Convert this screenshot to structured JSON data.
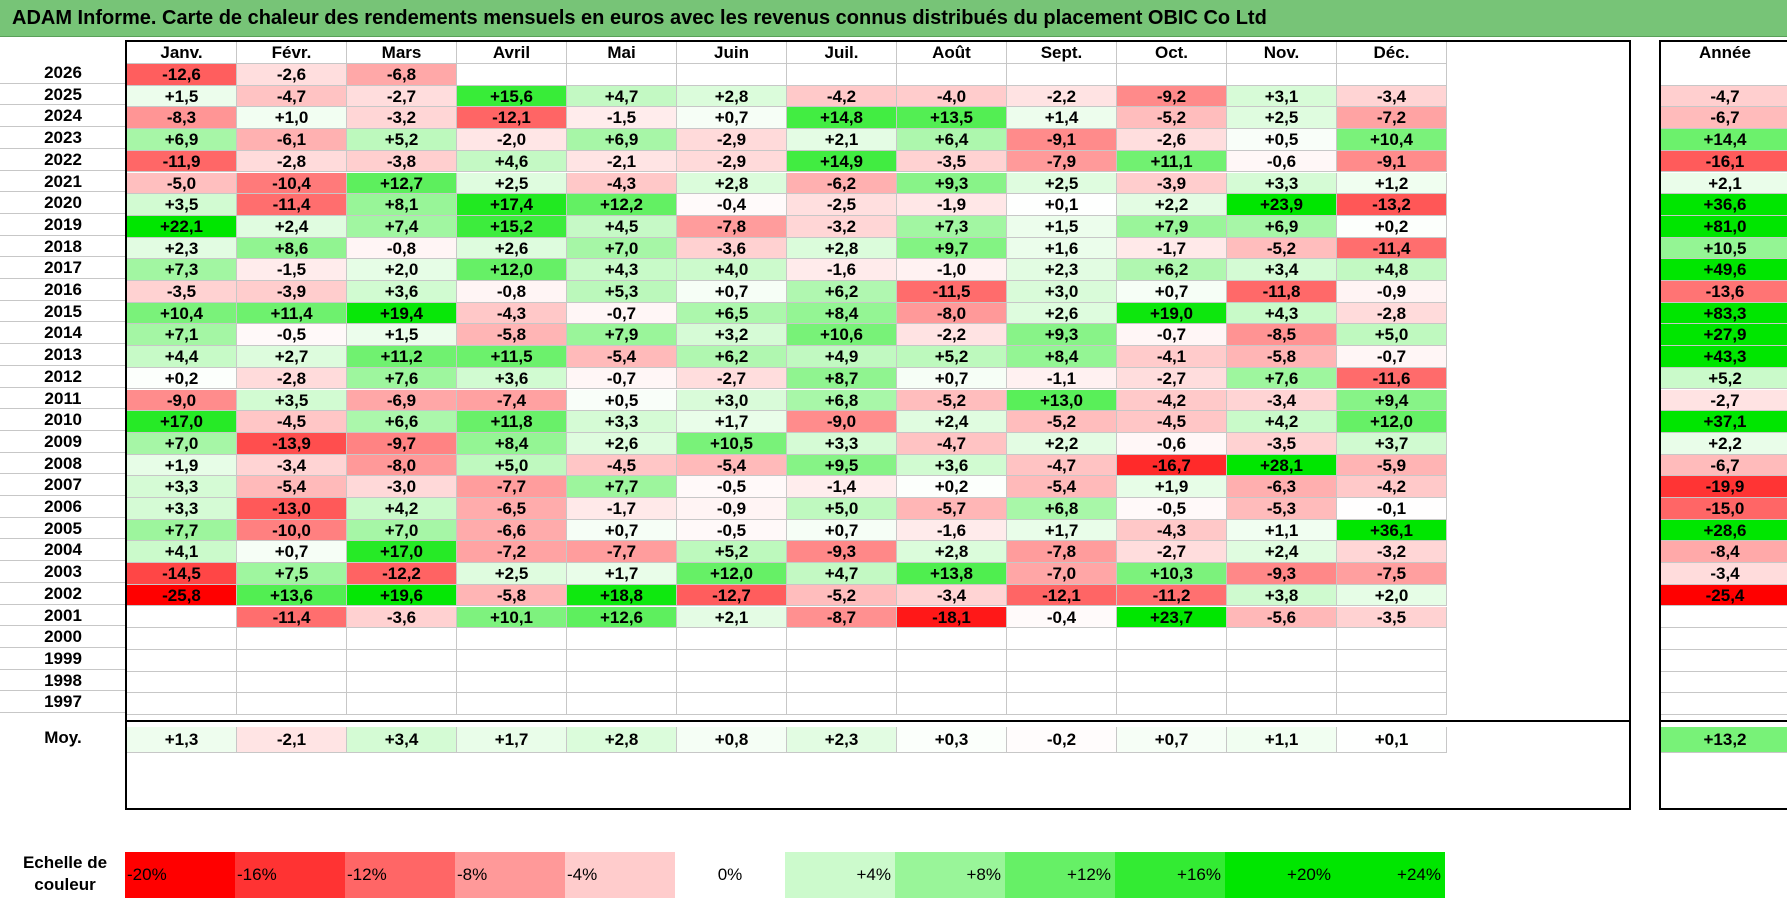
{
  "title": "ADAM Informe. Carte de chaleur des rendements mensuels en euros avec les revenus connus distribués du placement OBIC Co Ltd",
  "months": [
    "Janv.",
    "Févr.",
    "Mars",
    "Avril",
    "Mai",
    "Juin",
    "Juil.",
    "Août",
    "Sept.",
    "Oct.",
    "Nov.",
    "Déc."
  ],
  "annual_header": "Année",
  "average_label": "Moy.",
  "legend_label_line1": "Echelle de",
  "legend_label_line2": "couleur",
  "colors": {
    "neg_max": "#ff0000",
    "pos_max": "#00e600",
    "neutral": "#ffffff",
    "title_bg": "#77c477"
  },
  "chart_data": {
    "type": "heatmap",
    "title": "ADAM Informe. Carte de chaleur des rendements mensuels en euros avec les revenus connus distribués du placement OBIC Co Ltd",
    "color_scale": [
      "-20%",
      "-16%",
      "-12%",
      "-8%",
      "-4%",
      "0%",
      "+4%",
      "+8%",
      "+12%",
      "+16%",
      "+20%",
      "+24%"
    ],
    "rows": [
      {
        "year": "2026",
        "months": [
          "-12,6",
          "-2,6",
          "-6,8",
          "",
          "",
          "",
          "",
          "",
          "",
          "",
          "",
          ""
        ],
        "annual": ""
      },
      {
        "year": "2025",
        "months": [
          "+1,5",
          "-4,7",
          "-2,7",
          "+15,6",
          "+4,7",
          "+2,8",
          "-4,2",
          "-4,0",
          "-2,2",
          "-9,2",
          "+3,1",
          "-3,4"
        ],
        "annual": "-4,7"
      },
      {
        "year": "2024",
        "months": [
          "-8,3",
          "+1,0",
          "-3,2",
          "-12,1",
          "-1,5",
          "+0,7",
          "+14,8",
          "+13,5",
          "+1,4",
          "-5,2",
          "+2,5",
          "-7,2"
        ],
        "annual": "-6,7"
      },
      {
        "year": "2023",
        "months": [
          "+6,9",
          "-6,1",
          "+5,2",
          "-2,0",
          "+6,9",
          "-2,9",
          "+2,1",
          "+6,4",
          "-9,1",
          "-2,6",
          "+0,5",
          "+10,4"
        ],
        "annual": "+14,4"
      },
      {
        "year": "2022",
        "months": [
          "-11,9",
          "-2,8",
          "-3,8",
          "+4,6",
          "-2,1",
          "-2,9",
          "+14,9",
          "-3,5",
          "-7,9",
          "+11,1",
          "-0,6",
          "-9,1"
        ],
        "annual": "-16,1"
      },
      {
        "year": "2021",
        "months": [
          "-5,0",
          "-10,4",
          "+12,7",
          "+2,5",
          "-4,3",
          "+2,8",
          "-6,2",
          "+9,3",
          "+2,5",
          "-3,9",
          "+3,3",
          "+1,2"
        ],
        "annual": "+2,1"
      },
      {
        "year": "2020",
        "months": [
          "+3,5",
          "-11,4",
          "+8,1",
          "+17,4",
          "+12,2",
          "-0,4",
          "-2,5",
          "-1,9",
          "+0,1",
          "+2,2",
          "+23,9",
          "-13,2"
        ],
        "annual": "+36,6"
      },
      {
        "year": "2019",
        "months": [
          "+22,1",
          "+2,4",
          "+7,4",
          "+15,2",
          "+4,5",
          "-7,8",
          "-3,2",
          "+7,3",
          "+1,5",
          "+7,9",
          "+6,9",
          "+0,2"
        ],
        "annual": "+81,0"
      },
      {
        "year": "2018",
        "months": [
          "+2,3",
          "+8,6",
          "-0,8",
          "+2,6",
          "+7,0",
          "-3,6",
          "+2,8",
          "+9,7",
          "+1,6",
          "-1,7",
          "-5,2",
          "-11,4"
        ],
        "annual": "+10,5"
      },
      {
        "year": "2017",
        "months": [
          "+7,3",
          "-1,5",
          "+2,0",
          "+12,0",
          "+4,3",
          "+4,0",
          "-1,6",
          "-1,0",
          "+2,3",
          "+6,2",
          "+3,4",
          "+4,8"
        ],
        "annual": "+49,6"
      },
      {
        "year": "2016",
        "months": [
          "-3,5",
          "-3,9",
          "+3,6",
          "-0,8",
          "+5,3",
          "+0,7",
          "+6,2",
          "-11,5",
          "+3,0",
          "+0,7",
          "-11,8",
          "-0,9"
        ],
        "annual": "-13,6"
      },
      {
        "year": "2015",
        "months": [
          "+10,4",
          "+11,4",
          "+19,4",
          "-4,3",
          "-0,7",
          "+6,5",
          "+8,4",
          "-8,0",
          "+2,6",
          "+19,0",
          "+4,3",
          "-2,8"
        ],
        "annual": "+83,3"
      },
      {
        "year": "2014",
        "months": [
          "+7,1",
          "-0,5",
          "+1,5",
          "-5,8",
          "+7,9",
          "+3,2",
          "+10,6",
          "-2,2",
          "+9,3",
          "-0,7",
          "-8,5",
          "+5,0"
        ],
        "annual": "+27,9"
      },
      {
        "year": "2013",
        "months": [
          "+4,4",
          "+2,7",
          "+11,2",
          "+11,5",
          "-5,4",
          "+6,2",
          "+4,9",
          "+5,2",
          "+8,4",
          "-4,1",
          "-5,8",
          "-0,7"
        ],
        "annual": "+43,3"
      },
      {
        "year": "2012",
        "months": [
          "+0,2",
          "-2,8",
          "+7,6",
          "+3,6",
          "-0,7",
          "-2,7",
          "+8,7",
          "+0,7",
          "-1,1",
          "-2,7",
          "+7,6",
          "-11,6"
        ],
        "annual": "+5,2"
      },
      {
        "year": "2011",
        "months": [
          "-9,0",
          "+3,5",
          "-6,9",
          "-7,4",
          "+0,5",
          "+3,0",
          "+6,8",
          "-5,2",
          "+13,0",
          "-4,2",
          "-3,4",
          "+9,4"
        ],
        "annual": "-2,7"
      },
      {
        "year": "2010",
        "months": [
          "+17,0",
          "-4,5",
          "+6,6",
          "+11,8",
          "+3,3",
          "+1,7",
          "-9,0",
          "+2,4",
          "-5,2",
          "-4,5",
          "+4,2",
          "+12,0"
        ],
        "annual": "+37,1"
      },
      {
        "year": "2009",
        "months": [
          "+7,0",
          "-13,9",
          "-9,7",
          "+8,4",
          "+2,6",
          "+10,5",
          "+3,3",
          "-4,7",
          "+2,2",
          "-0,6",
          "-3,5",
          "+3,7"
        ],
        "annual": "+2,2"
      },
      {
        "year": "2008",
        "months": [
          "+1,9",
          "-3,4",
          "-8,0",
          "+5,0",
          "-4,5",
          "-5,4",
          "+9,5",
          "+3,6",
          "-4,7",
          "-16,7",
          "+28,1",
          "-5,9"
        ],
        "annual": "-6,7"
      },
      {
        "year": "2007",
        "months": [
          "+3,3",
          "-5,4",
          "-3,0",
          "-7,7",
          "+7,7",
          "-0,5",
          "-1,4",
          "+0,2",
          "-5,4",
          "+1,9",
          "-6,3",
          "-4,2"
        ],
        "annual": "-19,9"
      },
      {
        "year": "2006",
        "months": [
          "+3,3",
          "-13,0",
          "+4,2",
          "-6,5",
          "-1,7",
          "-0,9",
          "+5,0",
          "-5,7",
          "+6,8",
          "-0,5",
          "-5,3",
          "-0,1"
        ],
        "annual": "-15,0"
      },
      {
        "year": "2005",
        "months": [
          "+7,7",
          "-10,0",
          "+7,0",
          "-6,6",
          "+0,7",
          "-0,5",
          "+0,7",
          "-1,6",
          "+1,7",
          "-4,3",
          "+1,1",
          "+36,1"
        ],
        "annual": "+28,6"
      },
      {
        "year": "2004",
        "months": [
          "+4,1",
          "+0,7",
          "+17,0",
          "-7,2",
          "-7,7",
          "+5,2",
          "-9,3",
          "+2,8",
          "-7,8",
          "-2,7",
          "+2,4",
          "-3,2"
        ],
        "annual": "-8,4"
      },
      {
        "year": "2003",
        "months": [
          "-14,5",
          "+7,5",
          "-12,2",
          "+2,5",
          "+1,7",
          "+12,0",
          "+4,7",
          "+13,8",
          "-7,0",
          "+10,3",
          "-9,3",
          "-7,5"
        ],
        "annual": "-3,4"
      },
      {
        "year": "2002",
        "months": [
          "-25,8",
          "+13,6",
          "+19,6",
          "-5,8",
          "+18,8",
          "-12,7",
          "-5,2",
          "-3,4",
          "-12,1",
          "-11,2",
          "+3,8",
          "+2,0"
        ],
        "annual": "-25,4"
      },
      {
        "year": "2001",
        "months": [
          "",
          "-11,4",
          "-3,6",
          "+10,1",
          "+12,6",
          "+2,1",
          "-8,7",
          "-18,1",
          "-0,4",
          "+23,7",
          "-5,6",
          "-3,5"
        ],
        "annual": ""
      },
      {
        "year": "2000",
        "months": [
          "",
          "",
          "",
          "",
          "",
          "",
          "",
          "",
          "",
          "",
          "",
          ""
        ],
        "annual": ""
      },
      {
        "year": "1999",
        "months": [
          "",
          "",
          "",
          "",
          "",
          "",
          "",
          "",
          "",
          "",
          "",
          ""
        ],
        "annual": ""
      },
      {
        "year": "1998",
        "months": [
          "",
          "",
          "",
          "",
          "",
          "",
          "",
          "",
          "",
          "",
          "",
          ""
        ],
        "annual": ""
      },
      {
        "year": "1997",
        "months": [
          "",
          "",
          "",
          "",
          "",
          "",
          "",
          "",
          "",
          "",
          "",
          ""
        ],
        "annual": ""
      }
    ],
    "average": {
      "months": [
        "+1,3",
        "-2,1",
        "+3,4",
        "+1,7",
        "+2,8",
        "+0,8",
        "+2,3",
        "+0,3",
        "-0,2",
        "+0,7",
        "+1,1",
        "+0,1"
      ],
      "annual": "+13,2"
    }
  }
}
